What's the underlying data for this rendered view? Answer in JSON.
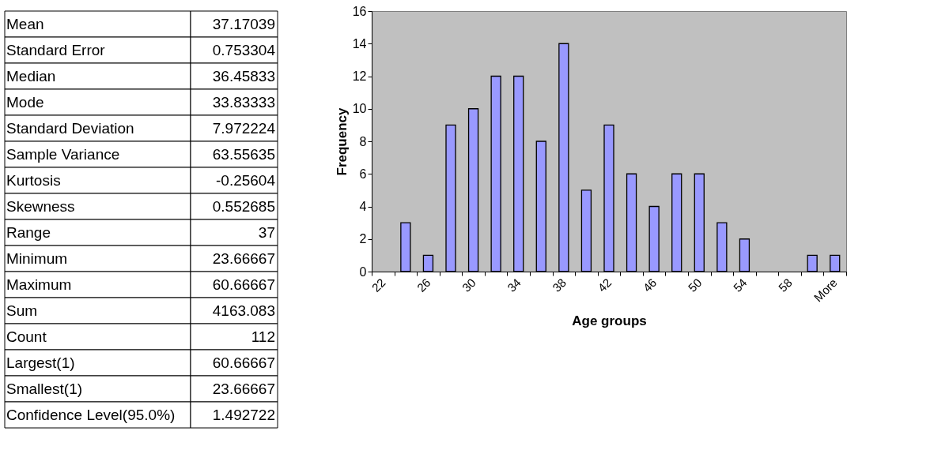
{
  "chart_data": [
    {
      "type": "other",
      "categories": [
        "Mean",
        "Standard Error",
        "Median",
        "Mode",
        "Standard Deviation",
        "Sample Variance",
        "Kurtosis",
        "Skewness",
        "Range",
        "Minimum",
        "Maximum",
        "Sum",
        "Count",
        "Largest(1)",
        "Smallest(1)",
        "Confidence Level(95.0%)"
      ],
      "value_labels": [
        "37.17039",
        "0.753304",
        "36.45833",
        "33.83333",
        "7.972224",
        "63.55635",
        "-0.25604",
        "0.552685",
        "37",
        "23.66667",
        "60.66667",
        "4163.083",
        "112",
        "60.66667",
        "23.66667",
        "1.492722"
      ]
    },
    {
      "type": "bar",
      "xlabel": "Age groups",
      "ylabel": "Frequency",
      "categories": [
        "22",
        null,
        "26",
        null,
        "30",
        null,
        "34",
        null,
        "38",
        null,
        "42",
        null,
        "46",
        null,
        "50",
        null,
        "54",
        null,
        "58",
        null,
        "More"
      ],
      "values": [
        0,
        3,
        1,
        9,
        10,
        12,
        12,
        8,
        14,
        5,
        9,
        6,
        4,
        6,
        6,
        3,
        2,
        0,
        0,
        1,
        1
      ],
      "color": "#9999ff",
      "ylim": [
        0,
        16
      ],
      "yticks": [
        0,
        2,
        4,
        6,
        8,
        10,
        12,
        14,
        16
      ],
      "grid": false
    }
  ]
}
